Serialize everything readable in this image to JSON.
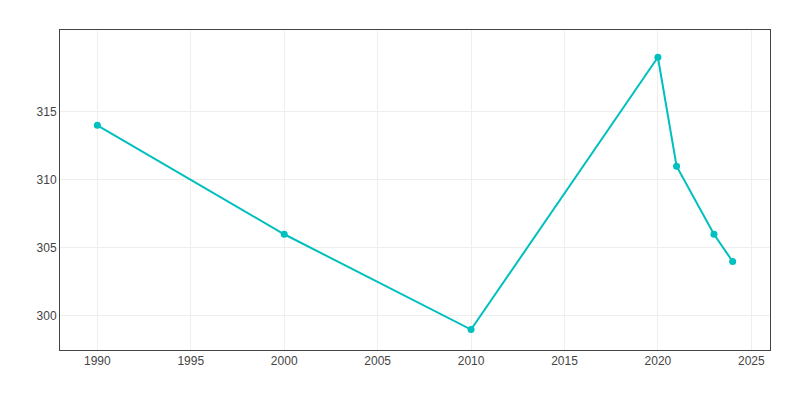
{
  "chart_data": {
    "type": "line",
    "x": [
      1990,
      2000,
      2010,
      2020,
      2021,
      2023,
      2024
    ],
    "values": [
      314,
      306,
      299,
      319,
      311,
      306,
      304
    ],
    "color": "#00BFBF",
    "marker": "circle",
    "xlim": [
      1988,
      2026
    ],
    "ylim": [
      297.5,
      321
    ],
    "xticks": [
      1990,
      1995,
      2000,
      2005,
      2010,
      2015,
      2020,
      2025
    ],
    "yticks": [
      300,
      305,
      310,
      315
    ],
    "grid": true
  }
}
